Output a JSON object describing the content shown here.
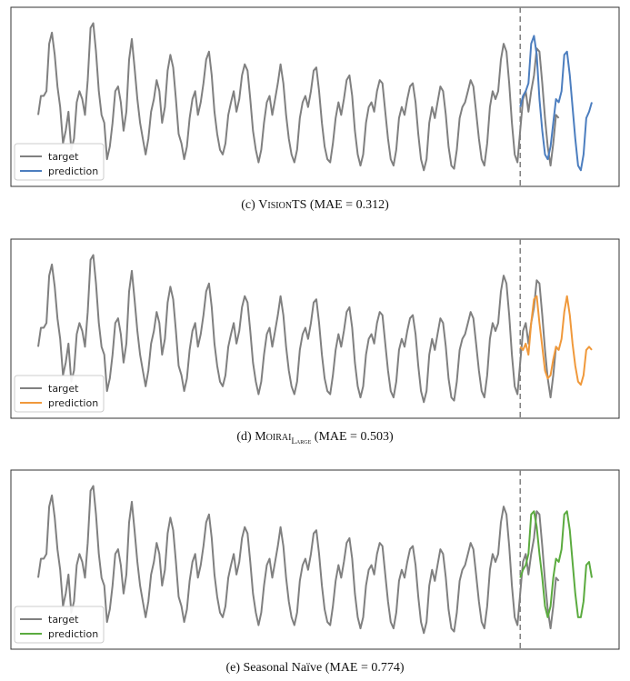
{
  "chart_data": [
    {
      "type": "line",
      "caption": {
        "prefix": "(c) ",
        "model": "VisionTS",
        "model_sub": "",
        "suffix": " (MAE = 0.312)"
      },
      "legend": {
        "placement": "lower-left",
        "entries": [
          "target",
          "prediction"
        ]
      },
      "series": [
        {
          "name": "target",
          "color": "#808080"
        },
        {
          "name": "prediction",
          "color": "#4c7ebf"
        }
      ],
      "target": [
        0.4,
        0.52,
        0.52,
        0.55,
        0.85,
        0.92,
        0.78,
        0.58,
        0.45,
        0.22,
        0.3,
        0.42,
        0.18,
        0.25,
        0.48,
        0.55,
        0.5,
        0.4,
        0.62,
        0.95,
        0.98,
        0.8,
        0.55,
        0.4,
        0.35,
        0.12,
        0.2,
        0.35,
        0.55,
        0.58,
        0.48,
        0.3,
        0.42,
        0.75,
        0.88,
        0.7,
        0.5,
        0.35,
        0.25,
        0.15,
        0.25,
        0.42,
        0.5,
        0.62,
        0.55,
        0.35,
        0.45,
        0.68,
        0.78,
        0.7,
        0.5,
        0.28,
        0.22,
        0.12,
        0.2,
        0.38,
        0.5,
        0.55,
        0.4,
        0.48,
        0.6,
        0.75,
        0.8,
        0.65,
        0.42,
        0.28,
        0.18,
        0.15,
        0.22,
        0.4,
        0.48,
        0.55,
        0.42,
        0.5,
        0.65,
        0.72,
        0.68,
        0.5,
        0.3,
        0.18,
        0.1,
        0.18,
        0.35,
        0.48,
        0.52,
        0.4,
        0.5,
        0.6,
        0.72,
        0.6,
        0.4,
        0.25,
        0.15,
        0.1,
        0.18,
        0.38,
        0.48,
        0.52,
        0.45,
        0.55,
        0.68,
        0.7,
        0.55,
        0.35,
        0.2,
        0.12,
        0.1,
        0.22,
        0.38,
        0.48,
        0.4,
        0.5,
        0.62,
        0.65,
        0.52,
        0.3,
        0.15,
        0.08,
        0.15,
        0.35,
        0.45,
        0.48,
        0.42,
        0.55,
        0.62,
        0.6,
        0.42,
        0.25,
        0.12,
        0.08,
        0.18,
        0.38,
        0.45,
        0.4,
        0.5,
        0.58,
        0.6,
        0.48,
        0.28,
        0.12,
        0.05,
        0.12,
        0.35,
        0.45,
        0.38,
        0.48,
        0.58,
        0.55,
        0.4,
        0.2,
        0.08,
        0.06,
        0.18,
        0.38,
        0.45,
        0.48,
        0.55,
        0.62,
        0.58,
        0.42,
        0.25,
        0.12,
        0.08,
        0.22,
        0.45,
        0.55,
        0.5,
        0.55,
        0.75,
        0.85,
        0.8,
        0.6,
        0.35,
        0.15,
        0.1,
        0.3,
        0.5,
        0.55,
        0.42,
        0.55,
        0.65,
        0.82,
        0.8,
        0.6,
        0.38,
        0.2,
        0.08,
        0.22,
        0.4,
        0.38
      ],
      "prediction": [
        0.45,
        0.52,
        0.55,
        0.6,
        0.85,
        0.9,
        0.78,
        0.5,
        0.3,
        0.15,
        0.12,
        0.2,
        0.35,
        0.5,
        0.48,
        0.55,
        0.78,
        0.8,
        0.65,
        0.45,
        0.25,
        0.08,
        0.05,
        0.15,
        0.38,
        0.42,
        0.48
      ],
      "forecast_start_index": 175
    },
    {
      "type": "line",
      "caption": {
        "prefix": "(d) ",
        "model": "Moirai",
        "model_sub": "Large",
        "suffix": " (MAE = 0.503)"
      },
      "legend": {
        "placement": "lower-left",
        "entries": [
          "target",
          "prediction"
        ]
      },
      "series": [
        {
          "name": "target",
          "color": "#808080"
        },
        {
          "name": "prediction",
          "color": "#f0993b"
        }
      ],
      "prediction": [
        0.4,
        0.38,
        0.42,
        0.35,
        0.55,
        0.7,
        0.72,
        0.55,
        0.4,
        0.25,
        0.2,
        0.22,
        0.32,
        0.4,
        0.38,
        0.45,
        0.62,
        0.72,
        0.6,
        0.42,
        0.28,
        0.18,
        0.16,
        0.22,
        0.38,
        0.4,
        0.38
      ],
      "forecast_start_index": 175
    },
    {
      "type": "line",
      "caption": {
        "prefix": "(e) ",
        "model": "Seasonal Naïve",
        "model_sub": "",
        "suffix": " (MAE = 0.774)"
      },
      "legend": {
        "placement": "lower-left",
        "entries": [
          "target",
          "prediction"
        ]
      },
      "series": [
        {
          "name": "target",
          "color": "#808080"
        },
        {
          "name": "prediction",
          "color": "#5bab3f"
        }
      ],
      "prediction": [
        0.4,
        0.45,
        0.48,
        0.55,
        0.8,
        0.82,
        0.72,
        0.55,
        0.4,
        0.22,
        0.15,
        0.22,
        0.4,
        0.52,
        0.5,
        0.58,
        0.8,
        0.82,
        0.7,
        0.5,
        0.3,
        0.15,
        0.15,
        0.25,
        0.48,
        0.5,
        0.4
      ],
      "forecast_start_index": 175
    }
  ]
}
